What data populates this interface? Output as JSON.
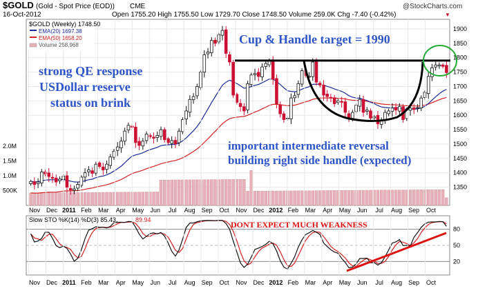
{
  "header": {
    "symbol": "$GOLD",
    "description": "(Gold - Spot Price (EOD))",
    "exchange": "CME",
    "watermark": "@StockCharts.com",
    "date": "16-Oct-2012",
    "ohlc_text": "Open 1755.20  High 1755.50  Low 1729.70  Close 1748.50  Volume 259.0K  Chg -7.40 (-0.42%)",
    "down_marker": "▼"
  },
  "legend": {
    "title": "$GOLD (Weekly) 1748.50",
    "ema20": "EMA(20) 1697.38",
    "ema50": "EMA(50) 1658.20",
    "volume": "Volume 258,968"
  },
  "annotations": {
    "target": "Cup & Handle target = 1990",
    "qe1": "strong QE response",
    "qe2": "USDollar reserve",
    "qe3": "status on brink",
    "rev1": "important intermediate reversal",
    "rev2": "building right side handle (expected)",
    "weakness": "DONT EXPECT MUCH WEAKNESS"
  },
  "stoch_legend": "Slow STO %K(14) %D(3) 85.43,",
  "stoch_d_value": "89.94",
  "colors": {
    "up": "#111111",
    "down": "#cc1133",
    "ema20": "#1a2a9a",
    "ema50": "#d42020",
    "volume": "#e8b0b8",
    "annotation_blue": "#2f56c8",
    "annotation_red": "#dd1111",
    "circle": "#22aa33",
    "grid": "#e8e8e8"
  },
  "chart_data": [
    {
      "type": "candlestick",
      "title": "$GOLD (Weekly)",
      "period": "weekly",
      "price_ticks": [
        1350,
        1400,
        1450,
        1500,
        1550,
        1600,
        1650,
        1700,
        1750,
        1800,
        1850,
        1900
      ],
      "volume_ticks": [
        {
          "v": 500000,
          "label": "500K"
        },
        {
          "v": 1000000,
          "label": "1.0M"
        },
        {
          "v": 1500000,
          "label": "1.5M"
        },
        {
          "v": 2000000,
          "label": "2.0M"
        }
      ],
      "x_labels": [
        "Nov",
        "Dec",
        "2011",
        "Feb",
        "Mar",
        "Apr",
        "May",
        "Jun",
        "Jul",
        "Aug",
        "Sep",
        "Oct",
        "Nov",
        "Dec",
        "2012",
        "Feb",
        "Mar",
        "Apr",
        "May",
        "Jun",
        "Jul",
        "Aug",
        "Sep",
        "Oct"
      ],
      "year_labels": [
        "2011",
        "2012"
      ],
      "closes": [
        1370,
        1359,
        1368,
        1403,
        1396,
        1387,
        1381,
        1368,
        1378,
        1388,
        1350,
        1340,
        1344,
        1360,
        1385,
        1400,
        1410,
        1398,
        1430,
        1422,
        1410,
        1430,
        1455,
        1475,
        1490,
        1510,
        1545,
        1565,
        1558,
        1505,
        1495,
        1510,
        1535,
        1525,
        1520,
        1530,
        1550,
        1515,
        1505,
        1512,
        1500,
        1545,
        1585,
        1615,
        1655,
        1665,
        1700,
        1750,
        1810,
        1820,
        1860,
        1850,
        1880,
        1895,
        1815,
        1785,
        1670,
        1645,
        1630,
        1615,
        1710,
        1740,
        1745,
        1735,
        1768,
        1780,
        1790,
        1725,
        1640,
        1605,
        1585,
        1590,
        1660,
        1668,
        1710,
        1755,
        1738,
        1735,
        1785,
        1715,
        1705,
        1670,
        1665,
        1660,
        1640,
        1650,
        1645,
        1610,
        1590,
        1610,
        1635,
        1655,
        1610,
        1618,
        1590,
        1595,
        1570,
        1580,
        1610,
        1615,
        1625,
        1618,
        1630,
        1585,
        1620,
        1625,
        1620,
        1627,
        1660,
        1680,
        1735,
        1765,
        1775,
        1775,
        1770,
        1748
      ],
      "ema20_last": 1697.38,
      "ema50_last": 1658.2,
      "volume_last": 258968,
      "annotation_lines": {
        "cup_handle_rim": 1790
      }
    },
    {
      "type": "line",
      "title": "Slow STO %K(14) %D(3)",
      "series": [
        {
          "name": "%K(14)",
          "last": 85.43
        },
        {
          "name": "%D(3)",
          "last": 89.94
        }
      ],
      "y_ticks": [
        20,
        50,
        80
      ],
      "ylim": [
        0,
        100
      ]
    }
  ]
}
